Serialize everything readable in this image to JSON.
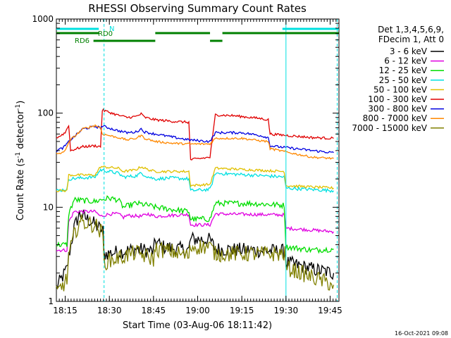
{
  "chart_data": {
    "type": "line",
    "title": "RHESSI Observing Summary Count Rates",
    "xlabel": "Start Time (03-Aug-06 18:11:42)",
    "ylabel_parts": [
      "Count Rate (s",
      "-1",
      " detector",
      "-1",
      ")"
    ],
    "ylabel": "Count Rate (s^-1 detector^-1)",
    "y_scale": "log",
    "ylim": [
      1,
      1000
    ],
    "x_range_minutes": [
      18.2,
      19.8
    ],
    "x_ticks": [
      {
        "label": "18:15",
        "t": 18.25
      },
      {
        "label": "18:30",
        "t": 18.5
      },
      {
        "label": "18:45",
        "t": 18.75
      },
      {
        "label": "19:00",
        "t": 19.0
      },
      {
        "label": "19:15",
        "t": 19.25
      },
      {
        "label": "19:30",
        "t": 19.5
      },
      {
        "label": "19:45",
        "t": 19.75
      }
    ],
    "y_ticks": [
      {
        "label": "1",
        "v": 1
      },
      {
        "label": "10",
        "v": 10
      },
      {
        "label": "100",
        "v": 100
      },
      {
        "label": "1000",
        "v": 1000
      }
    ],
    "legend_header": [
      "Det 1,3,4,5,6,9,",
      "FDecim 1, Att 0"
    ],
    "legend_position": "right",
    "series": [
      {
        "name": "3 - 6 keV",
        "color": "#000000",
        "noise": 0.18,
        "pts": [
          [
            18.2,
            1.4
          ],
          [
            18.26,
            2.2
          ],
          [
            18.27,
            3.0
          ],
          [
            18.3,
            6.0
          ],
          [
            18.33,
            8.5
          ],
          [
            18.4,
            7.0
          ],
          [
            18.47,
            5.5
          ],
          [
            18.47,
            3.2
          ],
          [
            18.58,
            3.4
          ],
          [
            18.65,
            3.6
          ],
          [
            18.75,
            3.4
          ],
          [
            18.76,
            4.4
          ],
          [
            18.8,
            3.8
          ],
          [
            18.95,
            3.5
          ],
          [
            18.96,
            4.6
          ],
          [
            19.07,
            4.5
          ],
          [
            19.1,
            3.6
          ],
          [
            19.5,
            3.4
          ],
          [
            19.5,
            2.6
          ],
          [
            19.65,
            2.2
          ],
          [
            19.77,
            2.0
          ]
        ]
      },
      {
        "name": "6 - 12 keV",
        "color": "#e000e0",
        "noise": 0.04,
        "pts": [
          [
            18.2,
            3.5
          ],
          [
            18.26,
            3.5
          ],
          [
            18.27,
            7.0
          ],
          [
            18.3,
            9.0
          ],
          [
            18.42,
            9.0
          ],
          [
            18.45,
            8.0
          ],
          [
            18.5,
            8.5
          ],
          [
            18.55,
            8.5
          ],
          [
            18.58,
            7.8
          ],
          [
            18.6,
            8.2
          ],
          [
            18.68,
            8.0
          ],
          [
            18.72,
            8.5
          ],
          [
            18.76,
            8.0
          ],
          [
            18.85,
            8.2
          ],
          [
            18.95,
            8.4
          ],
          [
            18.96,
            6.5
          ],
          [
            19.07,
            6.5
          ],
          [
            19.1,
            8.5
          ],
          [
            19.3,
            8.4
          ],
          [
            19.49,
            8.3
          ],
          [
            19.5,
            6.0
          ],
          [
            19.77,
            5.5
          ]
        ]
      },
      {
        "name": "12 - 25 keV",
        "color": "#00dd00",
        "noise": 0.07,
        "pts": [
          [
            18.2,
            4.0
          ],
          [
            18.26,
            4.0
          ],
          [
            18.27,
            8.5
          ],
          [
            18.3,
            12.0
          ],
          [
            18.42,
            11.5
          ],
          [
            18.45,
            12.0
          ],
          [
            18.5,
            12.5
          ],
          [
            18.55,
            12.0
          ],
          [
            18.58,
            10.0
          ],
          [
            18.65,
            11.0
          ],
          [
            18.72,
            10.5
          ],
          [
            18.76,
            10.0
          ],
          [
            18.85,
            9.5
          ],
          [
            18.95,
            9.0
          ],
          [
            18.96,
            7.5
          ],
          [
            19.07,
            7.5
          ],
          [
            19.1,
            11.0
          ],
          [
            19.3,
            11.0
          ],
          [
            19.49,
            10.5
          ],
          [
            19.5,
            3.8
          ],
          [
            19.65,
            3.5
          ],
          [
            19.77,
            3.6
          ]
        ]
      },
      {
        "name": "25 - 50 keV",
        "color": "#00e0e0",
        "noise": 0.04,
        "pts": [
          [
            18.2,
            15.0
          ],
          [
            18.26,
            15.5
          ],
          [
            18.27,
            20.0
          ],
          [
            18.42,
            21.0
          ],
          [
            18.45,
            25.0
          ],
          [
            18.55,
            23.0
          ],
          [
            18.58,
            21.0
          ],
          [
            18.65,
            21.5
          ],
          [
            18.68,
            23.0
          ],
          [
            18.72,
            21.0
          ],
          [
            18.76,
            20.0
          ],
          [
            18.85,
            20.5
          ],
          [
            18.95,
            20.0
          ],
          [
            18.96,
            15.0
          ],
          [
            19.07,
            15.5
          ],
          [
            19.1,
            23.0
          ],
          [
            19.3,
            22.0
          ],
          [
            19.49,
            21.0
          ],
          [
            19.5,
            16.0
          ],
          [
            19.77,
            15.0
          ]
        ]
      },
      {
        "name": "50 - 100 keV",
        "color": "#e0c000",
        "noise": 0.03,
        "pts": [
          [
            18.2,
            15.0
          ],
          [
            18.26,
            15.0
          ],
          [
            18.27,
            22.0
          ],
          [
            18.42,
            22.0
          ],
          [
            18.45,
            27.0
          ],
          [
            18.55,
            26.0
          ],
          [
            18.58,
            24.0
          ],
          [
            18.65,
            25.0
          ],
          [
            18.68,
            27.0
          ],
          [
            18.72,
            25.0
          ],
          [
            18.76,
            24.0
          ],
          [
            18.95,
            24.0
          ],
          [
            18.96,
            17.0
          ],
          [
            19.07,
            17.5
          ],
          [
            19.1,
            26.0
          ],
          [
            19.3,
            25.0
          ],
          [
            19.49,
            24.0
          ],
          [
            19.5,
            17.0
          ],
          [
            19.77,
            16.0
          ]
        ]
      },
      {
        "name": "100 - 300 keV",
        "color": "#e00000",
        "noise": 0.03,
        "pts": [
          [
            18.2,
            55.0
          ],
          [
            18.22,
            57.0
          ],
          [
            18.25,
            62.0
          ],
          [
            18.27,
            75.0
          ],
          [
            18.28,
            40.0
          ],
          [
            18.35,
            44.0
          ],
          [
            18.42,
            45.0
          ],
          [
            18.45,
            44.0
          ],
          [
            18.46,
            108.0
          ],
          [
            18.55,
            95.0
          ],
          [
            18.6,
            90.0
          ],
          [
            18.65,
            92.0
          ],
          [
            18.68,
            98.0
          ],
          [
            18.7,
            90.0
          ],
          [
            18.76,
            85.0
          ],
          [
            18.85,
            82.0
          ],
          [
            18.95,
            80.0
          ],
          [
            18.96,
            32.0
          ],
          [
            19.07,
            34.0
          ],
          [
            19.1,
            96.0
          ],
          [
            19.2,
            94.0
          ],
          [
            19.35,
            88.0
          ],
          [
            19.4,
            85.0
          ],
          [
            19.41,
            60.0
          ],
          [
            19.55,
            57.0
          ],
          [
            19.65,
            55.0
          ],
          [
            19.77,
            54.0
          ]
        ]
      },
      {
        "name": "300 - 800 keV",
        "color": "#0000e0",
        "noise": 0.03,
        "pts": [
          [
            18.2,
            40.0
          ],
          [
            18.24,
            43.0
          ],
          [
            18.28,
            52.0
          ],
          [
            18.35,
            68.0
          ],
          [
            18.42,
            72.0
          ],
          [
            18.45,
            70.0
          ],
          [
            18.46,
            73.0
          ],
          [
            18.55,
            65.0
          ],
          [
            18.6,
            62.0
          ],
          [
            18.65,
            63.0
          ],
          [
            18.68,
            68.0
          ],
          [
            18.7,
            63.0
          ],
          [
            18.76,
            60.0
          ],
          [
            18.85,
            56.0
          ],
          [
            18.95,
            52.0
          ],
          [
            19.07,
            50.0
          ],
          [
            19.1,
            62.0
          ],
          [
            19.25,
            62.0
          ],
          [
            19.35,
            58.0
          ],
          [
            19.4,
            55.0
          ],
          [
            19.41,
            45.0
          ],
          [
            19.55,
            42.0
          ],
          [
            19.65,
            40.0
          ],
          [
            19.77,
            38.0
          ]
        ]
      },
      {
        "name": "800 - 7000 keV",
        "color": "#ff8800",
        "noise": 0.025,
        "pts": [
          [
            18.2,
            37.0
          ],
          [
            18.24,
            38.0
          ],
          [
            18.28,
            52.0
          ],
          [
            18.35,
            68.0
          ],
          [
            18.42,
            74.0
          ],
          [
            18.45,
            70.0
          ],
          [
            18.46,
            60.0
          ],
          [
            18.55,
            55.0
          ],
          [
            18.6,
            52.0
          ],
          [
            18.65,
            54.0
          ],
          [
            18.68,
            58.0
          ],
          [
            18.7,
            54.0
          ],
          [
            18.76,
            50.0
          ],
          [
            18.85,
            48.0
          ],
          [
            18.95,
            47.0
          ],
          [
            19.07,
            47.0
          ],
          [
            19.1,
            54.0
          ],
          [
            19.25,
            54.0
          ],
          [
            19.35,
            51.0
          ],
          [
            19.4,
            50.0
          ],
          [
            19.41,
            42.0
          ],
          [
            19.55,
            37.0
          ],
          [
            19.65,
            34.0
          ],
          [
            19.77,
            33.0
          ]
        ]
      },
      {
        "name": "7000 - 15000 keV",
        "color": "#808000",
        "noise": 0.2,
        "pts": [
          [
            18.2,
            1.2
          ],
          [
            18.26,
            1.7
          ],
          [
            18.27,
            3.0
          ],
          [
            18.3,
            5.0
          ],
          [
            18.33,
            7.0
          ],
          [
            18.42,
            6.5
          ],
          [
            18.47,
            5.0
          ],
          [
            18.47,
            2.6
          ],
          [
            18.58,
            3.0
          ],
          [
            18.65,
            3.3
          ],
          [
            18.75,
            2.8
          ],
          [
            18.76,
            3.6
          ],
          [
            18.85,
            3.4
          ],
          [
            18.95,
            3.0
          ],
          [
            18.96,
            3.8
          ],
          [
            19.07,
            3.8
          ],
          [
            19.1,
            3.2
          ],
          [
            19.5,
            3.2
          ],
          [
            19.5,
            2.3
          ],
          [
            19.65,
            1.8
          ],
          [
            19.77,
            1.5
          ]
        ]
      }
    ],
    "annotations": [
      {
        "label": "N",
        "color": "#00e0e0"
      },
      {
        "label": "RD0",
        "color": "#008000"
      },
      {
        "label": "RD6",
        "color": "#008000"
      }
    ],
    "flag_bars": [
      {
        "name": "N",
        "color": "#00e0e0",
        "segments": [
          [
            18.2,
            18.44
          ],
          [
            19.48,
            19.8
          ]
        ]
      },
      {
        "name": "RD0",
        "color": "#008000",
        "segments": [
          [
            18.2,
            18.44
          ],
          [
            18.76,
            19.07
          ],
          [
            19.14,
            19.8
          ]
        ]
      },
      {
        "name": "RD6",
        "color": "#008000",
        "segments": [
          [
            18.41,
            18.76
          ],
          [
            19.07,
            19.14
          ]
        ]
      }
    ],
    "markers": [
      {
        "t": 18.47,
        "color": "#00e0e0",
        "style": "dashed"
      },
      {
        "t": 19.5,
        "color": "#00e0e0",
        "style": "solid"
      },
      {
        "t": 19.79,
        "color": "#00e0e0",
        "style": "dashed"
      }
    ],
    "footer": "16-Oct-2021 09:08"
  }
}
